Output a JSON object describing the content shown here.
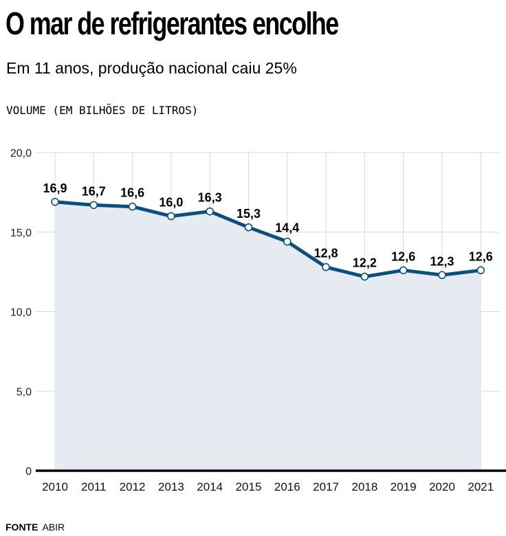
{
  "header": {
    "title": "O mar de refrigerantes encolhe",
    "subtitle": "Em 11 anos, produção nacional caiu 25%",
    "unit_label": "VOLUME (EM BILHÕES DE LITROS)"
  },
  "footer": {
    "source_key": "FONTE",
    "source_value": "ABIR"
  },
  "chart_data": {
    "type": "line",
    "title": "O mar de refrigerantes encolhe",
    "subtitle": "Em 11 anos, produção nacional caiu 25%",
    "ylabel": "VOLUME (EM BILHÕES DE LITROS)",
    "xlabel": "",
    "x": [
      "2010",
      "2011",
      "2012",
      "2013",
      "2014",
      "2015",
      "2016",
      "2017",
      "2018",
      "2019",
      "2020",
      "2021"
    ],
    "values": [
      16.9,
      16.7,
      16.6,
      16.0,
      16.3,
      15.3,
      14.4,
      12.8,
      12.2,
      12.6,
      12.3,
      12.6
    ],
    "data_labels": [
      "16,9",
      "16,7",
      "16,6",
      "16,0",
      "16,3",
      "15,3",
      "14,4",
      "12,8",
      "12,2",
      "12,6",
      "12,3",
      "12,6"
    ],
    "ylim": [
      0,
      20
    ],
    "yticks": [
      0,
      5,
      10,
      15,
      20
    ],
    "ytick_labels": [
      "0",
      "5,0",
      "10,0",
      "15,0",
      "20,0"
    ],
    "grid": true,
    "area_fill": true,
    "colors": {
      "line": "#0b4f80",
      "area": "#e6ebf2",
      "grid": "#d9d9d9",
      "baseline": "#000000",
      "marker_fill": "#ffffff"
    }
  }
}
